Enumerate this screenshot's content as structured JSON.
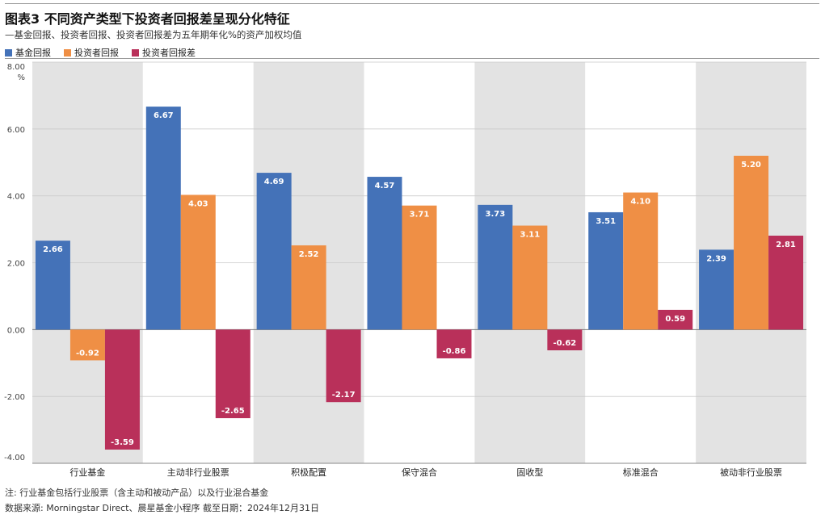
{
  "header": {
    "title": "图表3 不同资产类型下投资者回报差呈现分化特征",
    "subtitle": "—基金回报、投资者回报、投资者回报差为五年期年化%的资产加权均值"
  },
  "legend": [
    {
      "label": "基金回报",
      "color": "#4472b8"
    },
    {
      "label": "投资者回报",
      "color": "#ef8f45"
    },
    {
      "label": "投资者回报差",
      "color": "#b9305a"
    }
  ],
  "footer": {
    "note": "注: 行业基金包括行业股票（含主动和被动产品）以及行业混合基金",
    "source": "数据来源: Morningstar Direct、晨星基金小程序 截至日期：2024年12月31日"
  },
  "chart_data": {
    "type": "bar",
    "title": "图表3 不同资产类型下投资者回报差呈现分化特征",
    "subtitle": "—基金回报、投资者回报、投资者回报差为五年期年化%的资产加权均值",
    "categories": [
      "行业基金",
      "主动非行业股票",
      "积极配置",
      "保守混合",
      "固收型",
      "标准混合",
      "被动非行业股票"
    ],
    "series": [
      {
        "name": "基金回报",
        "color": "#4472b8",
        "values": [
          2.66,
          6.67,
          4.69,
          4.57,
          3.73,
          3.51,
          2.39
        ]
      },
      {
        "name": "投资者回报",
        "color": "#ef8f45",
        "values": [
          -0.92,
          4.03,
          2.52,
          3.71,
          3.11,
          4.1,
          5.2
        ]
      },
      {
        "name": "投资者回报差",
        "color": "#b9305a",
        "values": [
          -3.59,
          -2.65,
          -2.17,
          -0.86,
          -0.62,
          0.59,
          2.81
        ]
      }
    ],
    "yticks": [
      -4,
      -2,
      0,
      2,
      4,
      6,
      8
    ],
    "ytick_labels": [
      "-4.00",
      "-2.00",
      "0.00",
      "2.00",
      "4.00",
      "6.00",
      "8.00"
    ],
    "yunit": "%",
    "ylim": [
      -4,
      8
    ],
    "grid": true,
    "band_colors": [
      "#e3e3e3",
      "#ffffff"
    ],
    "legend_position": "top-left",
    "data_label_color": "#ffffff",
    "data_label_color_outside": "#222222"
  }
}
